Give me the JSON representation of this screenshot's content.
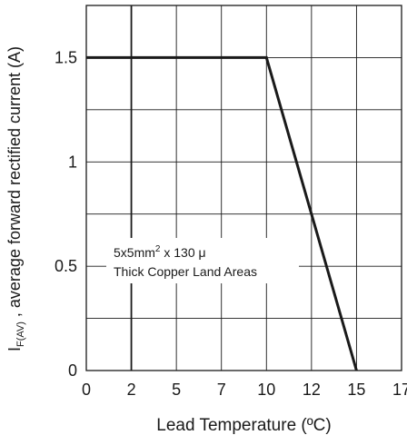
{
  "chart_data": {
    "type": "line",
    "title": "",
    "xlabel": "Lead Temperature (ºC)",
    "ylabel": {
      "symbol": "I",
      "subscript": "F(AV)",
      "text": " , average forward rectified current (A)"
    },
    "xlim": [
      0,
      17.5
    ],
    "ylim": [
      0,
      1.75
    ],
    "x_tick_labels": [
      "0",
      "2",
      "5",
      "7",
      "10",
      "12",
      "15",
      "17"
    ],
    "y_ticks": [
      {
        "value": 1.5,
        "label": "1.5"
      },
      {
        "value": 1.0,
        "label": "1"
      },
      {
        "value": 0.5,
        "label": "0.5"
      },
      {
        "value": 0.0,
        "label": "0"
      }
    ],
    "grid": true,
    "series": [
      {
        "x": [
          0,
          10,
          15
        ],
        "y": [
          1.5,
          1.5,
          0
        ]
      }
    ],
    "annotation": {
      "line1_main": "5x5mm",
      "line1_sup": "2",
      "line1_rest": " x 130 μ",
      "line2": "Thick Copper Land Areas"
    }
  }
}
